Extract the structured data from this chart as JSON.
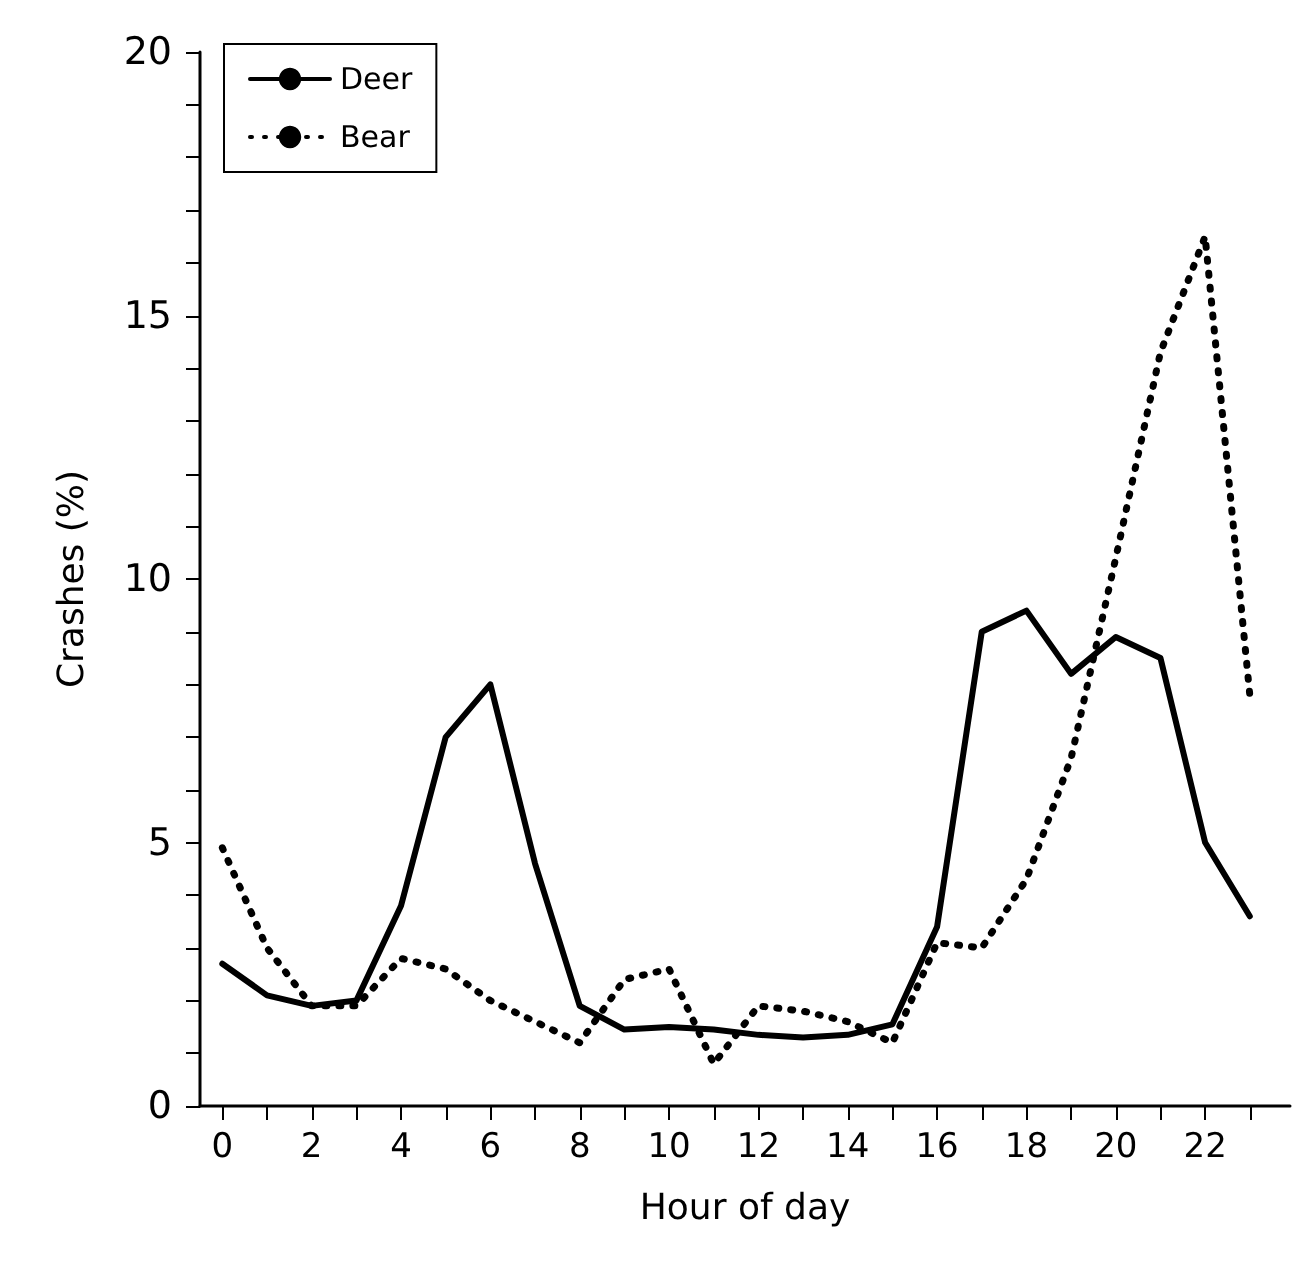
{
  "chart_data": {
    "type": "line",
    "xlabel": "Hour of day",
    "ylabel": "Crashes (%)",
    "x": [
      0,
      1,
      2,
      3,
      4,
      5,
      6,
      7,
      8,
      9,
      10,
      11,
      12,
      13,
      14,
      15,
      16,
      17,
      18,
      19,
      20,
      21,
      22,
      23
    ],
    "series": [
      {
        "name": "Deer",
        "color": "#000000",
        "line_style": "solid",
        "values": [
          2.7,
          2.1,
          1.9,
          2.0,
          3.8,
          7.0,
          8.0,
          4.6,
          1.9,
          1.45,
          1.5,
          1.45,
          1.35,
          1.3,
          1.35,
          1.55,
          3.4,
          9.0,
          9.4,
          8.2,
          8.9,
          8.5,
          5.0,
          3.6
        ]
      },
      {
        "name": "Bear",
        "color": "#000000",
        "line_style": "dotted",
        "values": [
          4.9,
          3.0,
          1.9,
          1.9,
          2.8,
          2.6,
          2.0,
          1.6,
          1.2,
          2.4,
          2.6,
          0.8,
          1.9,
          1.8,
          1.6,
          1.2,
          3.1,
          3.0,
          4.3,
          6.6,
          10.4,
          14.3,
          16.5,
          7.8
        ]
      }
    ],
    "xlim": [
      -0.5,
      23.9
    ],
    "xticks": [
      0,
      {
        "value": 1,
        "label": null
      },
      2,
      {
        "value": 3,
        "label": null
      },
      4,
      {
        "value": 5,
        "label": null
      },
      6,
      {
        "value": 7,
        "label": null
      },
      8,
      {
        "value": 9,
        "label": null
      },
      10,
      {
        "value": 11,
        "label": null
      },
      12,
      {
        "value": 13,
        "label": null
      },
      14,
      {
        "value": 15,
        "label": null
      },
      16,
      {
        "value": 17,
        "label": null
      },
      18,
      {
        "value": 19,
        "label": null
      },
      20,
      {
        "value": 21,
        "label": null
      },
      22,
      {
        "value": 23,
        "label": null
      }
    ],
    "ylim": [
      0,
      20
    ],
    "yticks": [
      0,
      {
        "value": 1,
        "label": null
      },
      {
        "value": 2,
        "label": null
      },
      {
        "value": 3,
        "label": null
      },
      {
        "value": 4,
        "label": null
      },
      5,
      {
        "value": 6,
        "label": null
      },
      {
        "value": 7,
        "label": null
      },
      {
        "value": 8,
        "label": null
      },
      {
        "value": 9,
        "label": null
      },
      10,
      {
        "value": 11,
        "label": null
      },
      {
        "value": 12,
        "label": null
      },
      {
        "value": 13,
        "label": null
      },
      {
        "value": 14,
        "label": null
      },
      15,
      {
        "value": 16,
        "label": null
      },
      {
        "value": 17,
        "label": null
      },
      {
        "value": 18,
        "label": null
      },
      {
        "value": 19,
        "label": null
      },
      20
    ],
    "grid": false,
    "legend": "top left",
    "marker": "none"
  }
}
